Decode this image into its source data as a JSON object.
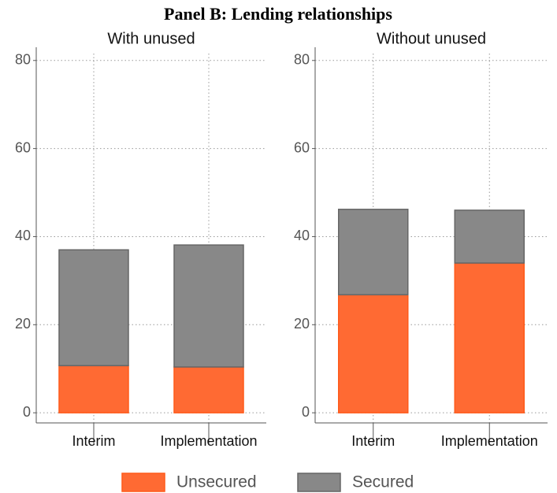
{
  "title": "Panel B: Lending relationships",
  "chart_data": [
    {
      "type": "bar",
      "stacked": true,
      "title": "With unused",
      "categories": [
        "Interim",
        "Implementation"
      ],
      "series": [
        {
          "name": "Unsecured",
          "color": "#ff6a33",
          "values": [
            10.7,
            10.4
          ]
        },
        {
          "name": "Secured",
          "color": "#888888",
          "values": [
            26.3,
            27.7
          ]
        }
      ],
      "ylim": [
        -2.3,
        83
      ],
      "yticks": [
        0,
        20,
        40,
        60,
        80
      ],
      "grid": true
    },
    {
      "type": "bar",
      "stacked": true,
      "title": "Without unused",
      "categories": [
        "Interim",
        "Implementation"
      ],
      "series": [
        {
          "name": "Unsecured",
          "color": "#ff6a33",
          "values": [
            26.8,
            34.0
          ]
        },
        {
          "name": "Secured",
          "color": "#888888",
          "values": [
            19.4,
            12.0
          ]
        }
      ],
      "ylim": [
        -2.3,
        83
      ],
      "yticks": [
        0,
        20,
        40,
        60,
        80
      ],
      "grid": true
    }
  ]
}
